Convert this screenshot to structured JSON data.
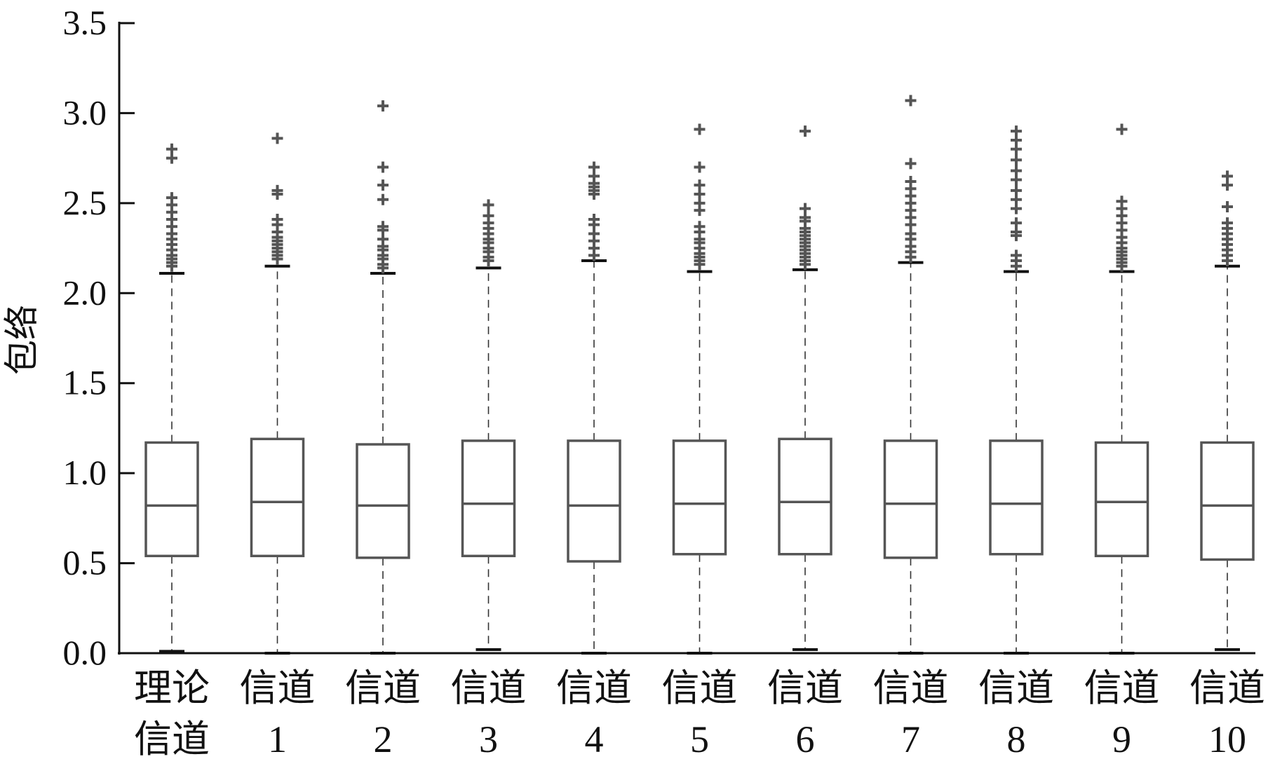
{
  "chart_data": {
    "type": "box",
    "ylabel": "包络",
    "xlabel": "",
    "ylim": [
      0,
      3.5
    ],
    "yticks": [
      "0.0",
      "0.5",
      "1.0",
      "1.5",
      "2.0",
      "2.5",
      "3.0",
      "3.5"
    ],
    "categories": [
      [
        "理论",
        "信道"
      ],
      [
        "信道",
        "1"
      ],
      [
        "信道",
        "2"
      ],
      [
        "信道",
        "3"
      ],
      [
        "信道",
        "4"
      ],
      [
        "信道",
        "5"
      ],
      [
        "信道",
        "6"
      ],
      [
        "信道",
        "7"
      ],
      [
        "信道",
        "8"
      ],
      [
        "信道",
        "9"
      ],
      [
        "信道",
        "10"
      ]
    ],
    "boxes": [
      {
        "min": 0.01,
        "q1": 0.54,
        "median": 0.82,
        "q3": 1.17,
        "max": 2.11,
        "outliers": [
          2.15,
          2.17,
          2.19,
          2.21,
          2.24,
          2.27,
          2.3,
          2.33,
          2.37,
          2.41,
          2.45,
          2.49,
          2.53,
          2.75,
          2.8
        ]
      },
      {
        "min": 0.0,
        "q1": 0.54,
        "median": 0.84,
        "q3": 1.19,
        "max": 2.15,
        "outliers": [
          2.19,
          2.21,
          2.23,
          2.25,
          2.27,
          2.29,
          2.31,
          2.34,
          2.38,
          2.41,
          2.55,
          2.57,
          2.86
        ]
      },
      {
        "min": 0.0,
        "q1": 0.53,
        "median": 0.82,
        "q3": 1.16,
        "max": 2.11,
        "outliers": [
          2.14,
          2.16,
          2.19,
          2.21,
          2.24,
          2.26,
          2.3,
          2.35,
          2.37,
          2.52,
          2.6,
          2.7,
          3.04
        ]
      },
      {
        "min": 0.02,
        "q1": 0.54,
        "median": 0.83,
        "q3": 1.18,
        "max": 2.14,
        "outliers": [
          2.18,
          2.2,
          2.23,
          2.25,
          2.28,
          2.3,
          2.33,
          2.36,
          2.39,
          2.43,
          2.49
        ]
      },
      {
        "min": 0.0,
        "q1": 0.51,
        "median": 0.82,
        "q3": 1.18,
        "max": 2.18,
        "outliers": [
          2.21,
          2.25,
          2.29,
          2.33,
          2.38,
          2.41,
          2.55,
          2.57,
          2.59,
          2.61,
          2.65,
          2.7
        ]
      },
      {
        "min": 0.0,
        "q1": 0.55,
        "median": 0.83,
        "q3": 1.18,
        "max": 2.12,
        "outliers": [
          2.16,
          2.18,
          2.2,
          2.22,
          2.25,
          2.28,
          2.3,
          2.34,
          2.37,
          2.46,
          2.5,
          2.55,
          2.6,
          2.7,
          2.91
        ]
      },
      {
        "min": 0.02,
        "q1": 0.55,
        "median": 0.84,
        "q3": 1.19,
        "max": 2.13,
        "outliers": [
          2.16,
          2.18,
          2.2,
          2.22,
          2.24,
          2.26,
          2.28,
          2.3,
          2.32,
          2.34,
          2.36,
          2.4,
          2.42,
          2.47,
          2.9
        ]
      },
      {
        "min": 0.0,
        "q1": 0.53,
        "median": 0.83,
        "q3": 1.18,
        "max": 2.17,
        "outliers": [
          2.2,
          2.23,
          2.26,
          2.3,
          2.33,
          2.38,
          2.42,
          2.46,
          2.5,
          2.54,
          2.58,
          2.62,
          2.72,
          3.07
        ]
      },
      {
        "min": 0.0,
        "q1": 0.55,
        "median": 0.83,
        "q3": 1.18,
        "max": 2.12,
        "outliers": [
          2.15,
          2.18,
          2.21,
          2.32,
          2.34,
          2.39,
          2.47,
          2.52,
          2.57,
          2.63,
          2.68,
          2.74,
          2.8,
          2.85,
          2.9
        ]
      },
      {
        "min": 0.0,
        "q1": 0.54,
        "median": 0.84,
        "q3": 1.17,
        "max": 2.12,
        "outliers": [
          2.15,
          2.17,
          2.19,
          2.21,
          2.23,
          2.25,
          2.28,
          2.31,
          2.35,
          2.39,
          2.43,
          2.47,
          2.51,
          2.91
        ]
      },
      {
        "min": 0.02,
        "q1": 0.52,
        "median": 0.82,
        "q3": 1.17,
        "max": 2.15,
        "outliers": [
          2.18,
          2.21,
          2.24,
          2.27,
          2.3,
          2.33,
          2.36,
          2.39,
          2.48,
          2.6,
          2.65
        ]
      }
    ],
    "grid": false,
    "colors": {
      "box": "#555555",
      "axis": "#111111",
      "text": "#111111"
    }
  }
}
